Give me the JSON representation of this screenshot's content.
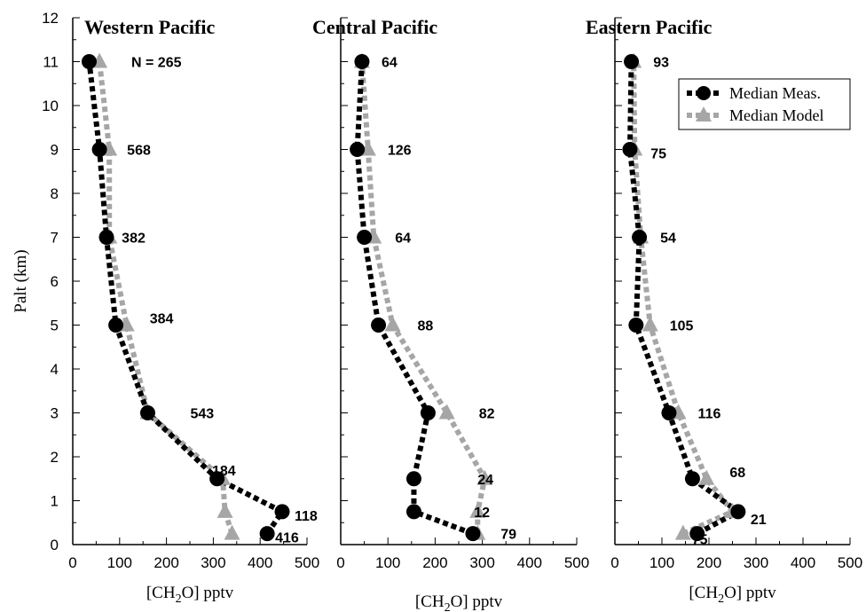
{
  "figure": {
    "ylabel": "Palt (km)",
    "xlabel_prefix": "[CH",
    "xlabel_sub1": "2",
    "xlabel_mid": "O]",
    "xlabel_suffix": " pptv",
    "count_prefix": "N = ",
    "colors": {
      "measured": "#000000",
      "model": "#a6a6a6"
    }
  },
  "legend": {
    "measured_label": "Median Meas.",
    "model_label": "Median Model",
    "placement": "upper right of Eastern Pacific panel"
  },
  "chart_data": [
    {
      "type": "line",
      "title": "Western Pacific",
      "xlabel": "[CH2O] pptv",
      "ylabel": "Palt (km)",
      "xlim": [
        0,
        500
      ],
      "ylim": [
        0,
        12
      ],
      "xticks": [
        0,
        100,
        200,
        300,
        400,
        500
      ],
      "yticks": [
        0,
        1,
        2,
        3,
        4,
        5,
        6,
        7,
        8,
        9,
        10,
        11,
        12
      ],
      "series": [
        {
          "name": "Median Meas.",
          "x": [
            415,
            447,
            308,
            160,
            92,
            72,
            57,
            35
          ],
          "y": [
            0.25,
            0.75,
            1.5,
            3,
            5,
            7,
            9,
            11
          ]
        },
        {
          "name": "Median Model",
          "x": [
            340,
            325,
            320,
            160,
            115,
            78,
            78,
            57
          ],
          "y": [
            0.25,
            0.75,
            1.5,
            3,
            5,
            7,
            9,
            11
          ]
        }
      ],
      "counts": [
        {
          "label": "416",
          "y": 0.25
        },
        {
          "label": "118",
          "y": 0.75
        },
        {
          "label": "184",
          "y": 1.5
        },
        {
          "label": "543",
          "y": 3
        },
        {
          "label": "384",
          "y": 5
        },
        {
          "label": "382",
          "y": 7
        },
        {
          "label": "568",
          "y": 9
        },
        {
          "label": "265",
          "y": 11
        }
      ]
    },
    {
      "type": "line",
      "title": "Central Pacific",
      "xlabel": "[CH2O] pptv",
      "ylabel": "",
      "xlim": [
        0,
        500
      ],
      "ylim": [
        0,
        12
      ],
      "xticks": [
        0,
        100,
        200,
        300,
        400,
        500
      ],
      "series": [
        {
          "name": "Median Meas.",
          "x": [
            280,
            155,
            155,
            185,
            80,
            50,
            35,
            45
          ],
          "y": [
            0.25,
            0.75,
            1.5,
            3,
            5,
            7,
            9,
            11
          ]
        },
        {
          "name": "Median Model",
          "x": [
            290,
            290,
            305,
            225,
            110,
            70,
            58,
            45
          ],
          "y": [
            0.25,
            0.75,
            1.5,
            3,
            5,
            7,
            9,
            11
          ]
        }
      ],
      "counts": [
        {
          "label": "79",
          "y": 0.25
        },
        {
          "label": "12",
          "y": 0.75
        },
        {
          "label": "24",
          "y": 1.5
        },
        {
          "label": "82",
          "y": 3
        },
        {
          "label": "88",
          "y": 5
        },
        {
          "label": "64",
          "y": 7
        },
        {
          "label": "126",
          "y": 9
        },
        {
          "label": "64",
          "y": 11
        }
      ]
    },
    {
      "type": "line",
      "title": "Eastern Pacific",
      "xlabel": "[CH2O] pptv",
      "ylabel": "",
      "xlim": [
        0,
        500
      ],
      "ylim": [
        0,
        12
      ],
      "xticks": [
        0,
        100,
        200,
        300,
        400,
        500
      ],
      "series": [
        {
          "name": "Median Meas.",
          "x": [
            175,
            262,
            165,
            115,
            45,
            52,
            32,
            35
          ],
          "y": [
            0.25,
            0.75,
            1.5,
            3,
            5,
            7,
            9,
            11
          ]
        },
        {
          "name": "Median Model",
          "x": [
            145,
            250,
            195,
            135,
            75,
            55,
            42,
            40
          ],
          "y": [
            0.25,
            0.75,
            1.5,
            3,
            5,
            7,
            9,
            11
          ]
        }
      ],
      "counts": [
        {
          "label": "75",
          "y": 0.25
        },
        {
          "label": "21",
          "y": 0.75
        },
        {
          "label": "68",
          "y": 1.5
        },
        {
          "label": "116",
          "y": 3
        },
        {
          "label": "105",
          "y": 5
        },
        {
          "label": "54",
          "y": 7
        },
        {
          "label": "75",
          "y": 9
        },
        {
          "label": "93",
          "y": 11
        }
      ]
    }
  ]
}
